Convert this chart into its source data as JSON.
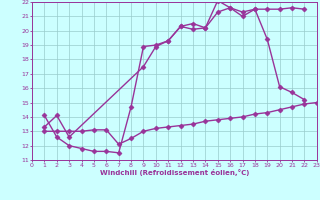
{
  "line1_x": [
    1,
    2,
    3,
    9,
    10,
    11,
    12,
    13,
    14,
    15,
    16,
    17,
    18,
    19,
    20,
    21,
    22
  ],
  "line1_y": [
    13.3,
    14.1,
    12.6,
    17.5,
    18.9,
    19.3,
    20.3,
    20.5,
    20.2,
    21.3,
    21.6,
    21.3,
    21.5,
    21.5,
    21.5,
    21.6,
    21.5
  ],
  "line2_x": [
    1,
    2,
    3,
    4,
    5,
    6,
    7,
    8,
    9,
    10,
    11,
    12,
    13,
    14,
    15,
    16,
    17,
    18,
    19,
    20,
    21,
    22
  ],
  "line2_y": [
    14.1,
    12.6,
    12.0,
    11.8,
    11.6,
    11.6,
    11.5,
    14.7,
    18.9,
    19.0,
    19.3,
    20.3,
    20.1,
    20.2,
    22.1,
    21.6,
    21.0,
    21.5,
    19.4,
    16.1,
    15.7,
    15.2
  ],
  "line3_x": [
    1,
    2,
    3,
    4,
    5,
    6,
    7,
    8,
    9,
    10,
    11,
    12,
    13,
    14,
    15,
    16,
    17,
    18,
    19,
    20,
    21,
    22,
    23
  ],
  "line3_y": [
    13.0,
    13.0,
    13.0,
    13.0,
    13.1,
    13.1,
    12.1,
    12.5,
    13.0,
    13.2,
    13.3,
    13.4,
    13.5,
    13.7,
    13.8,
    13.9,
    14.0,
    14.2,
    14.3,
    14.5,
    14.7,
    14.9,
    15.0
  ],
  "color": "#993399",
  "bg_color": "#ccffff",
  "grid_color": "#99cccc",
  "xlim": [
    0,
    23
  ],
  "ylim": [
    11,
    22
  ],
  "xticks": [
    0,
    1,
    2,
    3,
    4,
    5,
    6,
    7,
    8,
    9,
    10,
    11,
    12,
    13,
    14,
    15,
    16,
    17,
    18,
    19,
    20,
    21,
    22,
    23
  ],
  "yticks": [
    11,
    12,
    13,
    14,
    15,
    16,
    17,
    18,
    19,
    20,
    21,
    22
  ],
  "xlabel": "Windchill (Refroidissement éolien,°C)",
  "markersize": 2.5,
  "linewidth": 1.0
}
